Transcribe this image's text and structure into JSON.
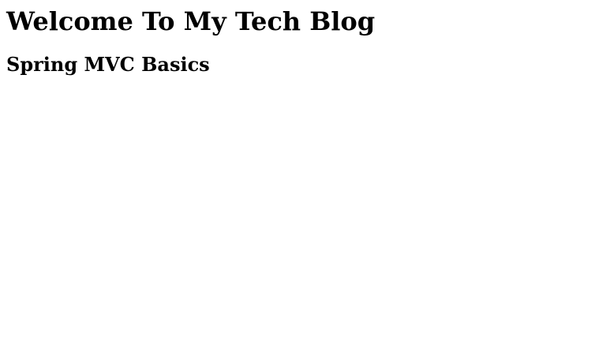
{
  "page": {
    "heading": "Welcome To My Tech Blog",
    "subheading": "Spring MVC Basics"
  }
}
